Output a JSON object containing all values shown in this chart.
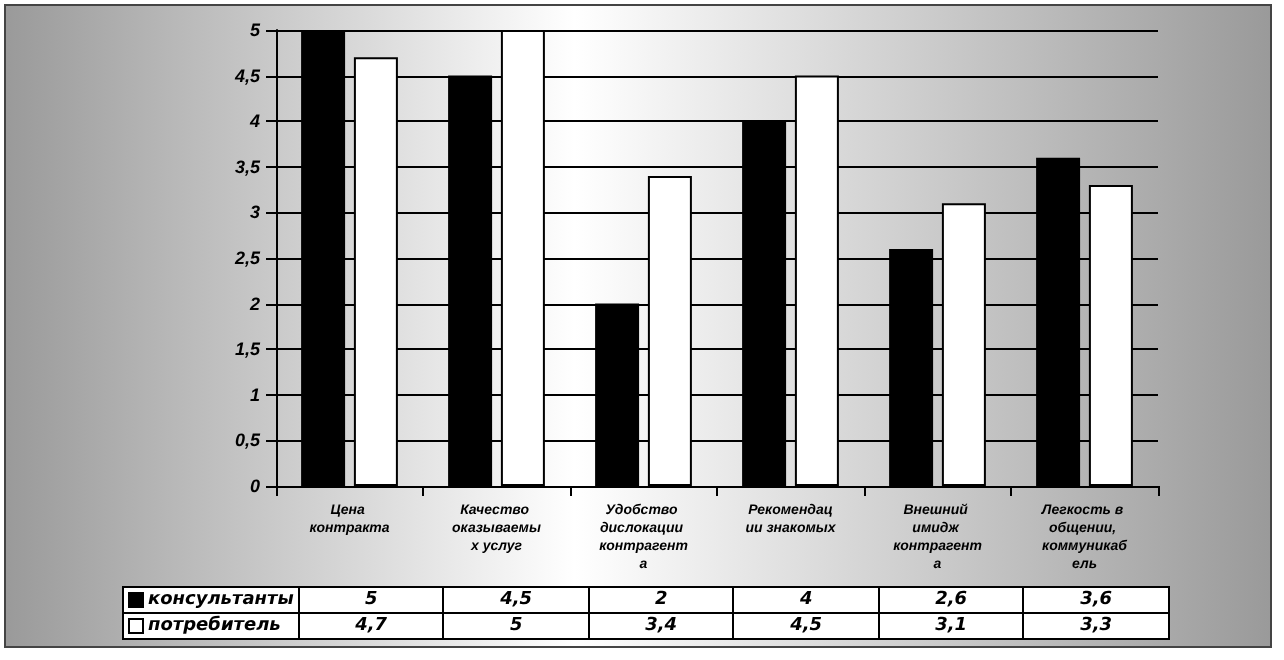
{
  "chart_data": {
    "type": "bar",
    "categories": [
      "Цена контракта",
      "Качество оказываемых услуг",
      "Удобство дислокации контрагента",
      "Рекомендации знакомых",
      "Внешний имидж контрагента",
      "Легкость в общении, коммуникабель"
    ],
    "series": [
      {
        "name": "консультанты",
        "color": "#000000",
        "values": [
          5,
          4.5,
          2,
          4,
          2.6,
          3.6
        ],
        "value_labels": [
          "5",
          "4,5",
          "2",
          "4",
          "2,6",
          "3,6"
        ]
      },
      {
        "name": "потребитель",
        "color": "#ffffff",
        "values": [
          4.7,
          5,
          3.4,
          4.5,
          3.1,
          3.3
        ],
        "value_labels": [
          "4,7",
          "5",
          "3,4",
          "4,5",
          "3,1",
          "3,3"
        ]
      }
    ],
    "ylim": [
      0,
      5
    ],
    "yticks": [
      0,
      {
        "value": 0.5,
        "label": "0,5"
      },
      1,
      {
        "value": 1.5,
        "label": "1,5"
      },
      2,
      {
        "value": 2.5,
        "label": "2,5"
      },
      3,
      {
        "value": 3.5,
        "label": "3,5"
      },
      4,
      {
        "value": 4.5,
        "label": "4,5"
      },
      5
    ],
    "grid": "y",
    "legend": "bottom"
  }
}
